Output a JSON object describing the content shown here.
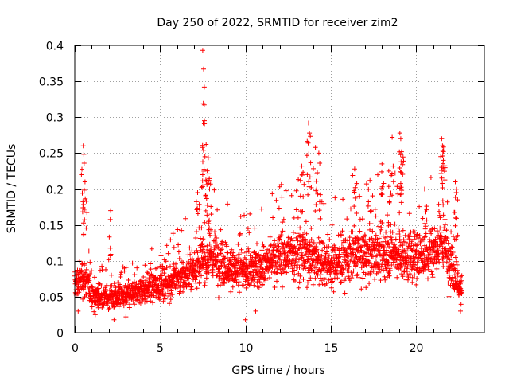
{
  "chart_data": {
    "type": "scatter",
    "title": "Day 250 of 2022, SRMTID for receiver zim2",
    "xlabel": "GPS time / hours",
    "ylabel": "SRMTID / TECUs",
    "xlim": [
      0,
      24
    ],
    "ylim": [
      0,
      0.4
    ],
    "xticks": [
      0,
      5,
      10,
      15,
      20
    ],
    "xtick_labels": [
      "0",
      "5",
      "10",
      "15",
      "20"
    ],
    "yticks": [
      0,
      0.05,
      0.1,
      0.15,
      0.2,
      0.25,
      0.3,
      0.35,
      0.4
    ],
    "ytick_labels": [
      "0",
      "0.05",
      "0.1",
      "0.15",
      "0.2",
      "0.25",
      "0.3",
      "0.35",
      "0.4"
    ],
    "grid": true,
    "marker": "+",
    "color": "#ff0000",
    "series": [
      {
        "name": "SRMTID",
        "trend": [
          [
            0.0,
            0.065
          ],
          [
            0.5,
            0.08
          ],
          [
            1.0,
            0.055
          ],
          [
            1.5,
            0.05
          ],
          [
            2.0,
            0.05
          ],
          [
            2.5,
            0.05
          ],
          [
            3.0,
            0.05
          ],
          [
            3.5,
            0.055
          ],
          [
            4.0,
            0.06
          ],
          [
            4.5,
            0.065
          ],
          [
            5.0,
            0.065
          ],
          [
            5.5,
            0.07
          ],
          [
            6.0,
            0.075
          ],
          [
            6.5,
            0.08
          ],
          [
            7.0,
            0.09
          ],
          [
            7.5,
            0.1
          ],
          [
            8.0,
            0.105
          ],
          [
            8.5,
            0.1
          ],
          [
            9.0,
            0.09
          ],
          [
            9.5,
            0.085
          ],
          [
            10.0,
            0.085
          ],
          [
            10.5,
            0.09
          ],
          [
            11.0,
            0.095
          ],
          [
            11.5,
            0.1
          ],
          [
            12.0,
            0.105
          ],
          [
            12.5,
            0.11
          ],
          [
            13.0,
            0.11
          ],
          [
            13.5,
            0.11
          ],
          [
            14.0,
            0.105
          ],
          [
            14.5,
            0.1
          ],
          [
            15.0,
            0.095
          ],
          [
            15.5,
            0.1
          ],
          [
            16.0,
            0.105
          ],
          [
            16.5,
            0.11
          ],
          [
            17.0,
            0.11
          ],
          [
            17.5,
            0.11
          ],
          [
            18.0,
            0.11
          ],
          [
            18.5,
            0.115
          ],
          [
            19.0,
            0.11
          ],
          [
            19.5,
            0.105
          ],
          [
            20.0,
            0.105
          ],
          [
            20.5,
            0.11
          ],
          [
            21.0,
            0.115
          ],
          [
            21.5,
            0.125
          ],
          [
            22.0,
            0.1
          ],
          [
            22.5,
            0.065
          ],
          [
            22.7,
            0.06
          ]
        ],
        "peaks": [
          [
            0.5,
            0.26
          ],
          [
            0.55,
            0.236
          ],
          [
            0.6,
            0.21
          ],
          [
            2.1,
            0.17
          ],
          [
            7.2,
            0.195
          ],
          [
            7.5,
            0.393
          ],
          [
            7.55,
            0.367
          ],
          [
            7.6,
            0.291
          ],
          [
            7.7,
            0.262
          ],
          [
            7.8,
            0.222
          ],
          [
            7.9,
            0.2
          ],
          [
            13.3,
            0.232
          ],
          [
            13.7,
            0.292
          ],
          [
            13.75,
            0.278
          ],
          [
            14.1,
            0.258
          ],
          [
            14.3,
            0.25
          ],
          [
            16.4,
            0.228
          ],
          [
            17.3,
            0.212
          ],
          [
            18.0,
            0.235
          ],
          [
            18.4,
            0.225
          ],
          [
            18.6,
            0.272
          ],
          [
            19.05,
            0.278
          ],
          [
            19.1,
            0.27
          ],
          [
            19.15,
            0.252
          ],
          [
            20.5,
            0.2
          ],
          [
            21.5,
            0.27
          ],
          [
            21.55,
            0.26
          ],
          [
            21.6,
            0.24
          ],
          [
            22.3,
            0.21
          ],
          [
            22.35,
            0.195
          ]
        ],
        "lows": [
          [
            0.2,
            0.03
          ],
          [
            1.2,
            0.025
          ],
          [
            2.3,
            0.018
          ],
          [
            3.0,
            0.022
          ],
          [
            10.0,
            0.018
          ],
          [
            10.6,
            0.03
          ],
          [
            22.6,
            0.03
          ]
        ],
        "samples_per_hour": 110,
        "time_end": 22.7
      }
    ]
  }
}
